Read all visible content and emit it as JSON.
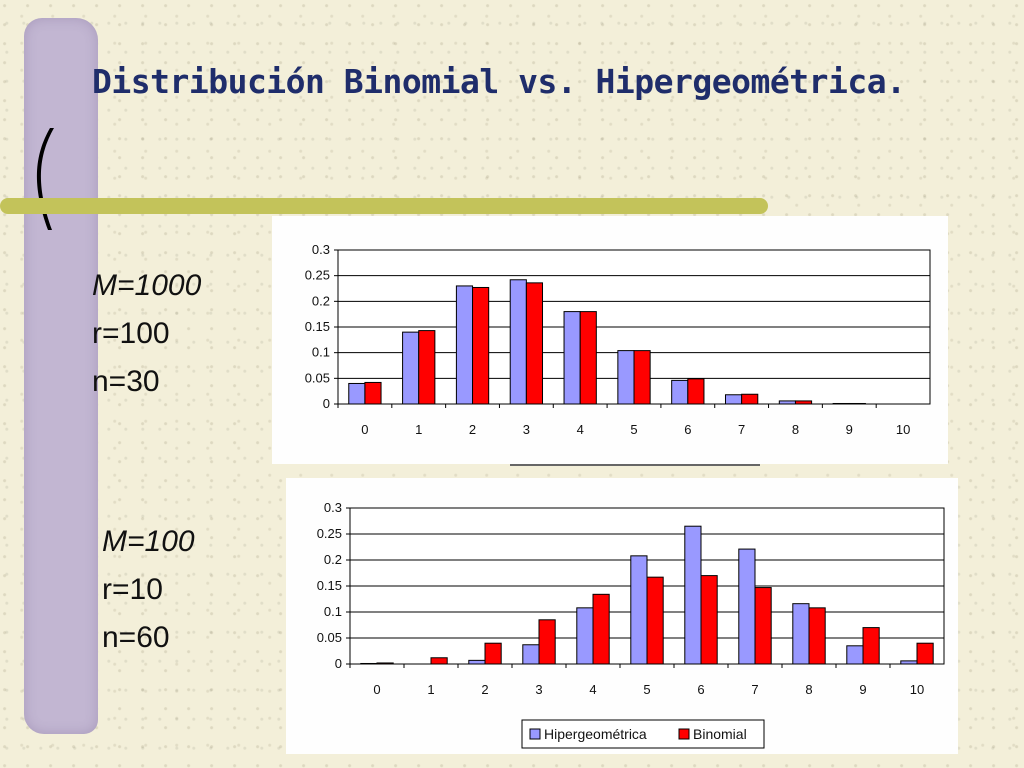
{
  "slide": {
    "title": "Distribución Binomial vs. Hipergeométrica.",
    "colors": {
      "accent_strip": "#c2b6d2",
      "green_line": "#c3c35a",
      "title": "#1f2d6b"
    }
  },
  "params": [
    {
      "M": "M=1000",
      "r": "r=100",
      "n": "n=30"
    },
    {
      "M": "M=100",
      "r": "r=10",
      "n": "n=60"
    }
  ],
  "chart_data": [
    {
      "type": "bar",
      "categories": [
        "0",
        "1",
        "2",
        "3",
        "4",
        "5",
        "6",
        "7",
        "8",
        "9",
        "10"
      ],
      "ylim": [
        0,
        0.3
      ],
      "yticks": [
        "0",
        "0.05",
        "0.1",
        "0.15",
        "0.2",
        "0.25",
        "0.3"
      ],
      "series": [
        {
          "name": "Hipergeométrica",
          "color": "#9999ff",
          "values": [
            0.04,
            0.14,
            0.23,
            0.242,
            0.18,
            0.104,
            0.046,
            0.018,
            0.006,
            0.001,
            0.0
          ]
        },
        {
          "name": "Binomial",
          "color": "#ff0000",
          "values": [
            0.042,
            0.143,
            0.227,
            0.236,
            0.18,
            0.104,
            0.049,
            0.019,
            0.006,
            0.001,
            0.0
          ]
        }
      ],
      "legend": false,
      "grid": true
    },
    {
      "type": "bar",
      "categories": [
        "0",
        "1",
        "2",
        "3",
        "4",
        "5",
        "6",
        "7",
        "8",
        "9",
        "10"
      ],
      "ylim": [
        0,
        0.3
      ],
      "yticks": [
        "0",
        "0.05",
        "0.1",
        "0.15",
        "0.2",
        "0.25",
        "0.3"
      ],
      "series": [
        {
          "name": "Hipergeométrica",
          "color": "#9999ff",
          "values": [
            0.001,
            0.0,
            0.007,
            0.037,
            0.108,
            0.208,
            0.265,
            0.221,
            0.116,
            0.035,
            0.006
          ]
        },
        {
          "name": "Binomial",
          "color": "#ff0000",
          "values": [
            0.002,
            0.012,
            0.04,
            0.085,
            0.134,
            0.167,
            0.17,
            0.147,
            0.108,
            0.07,
            0.04
          ]
        }
      ],
      "legend": true,
      "legend_position": "bottom",
      "grid": true
    }
  ]
}
